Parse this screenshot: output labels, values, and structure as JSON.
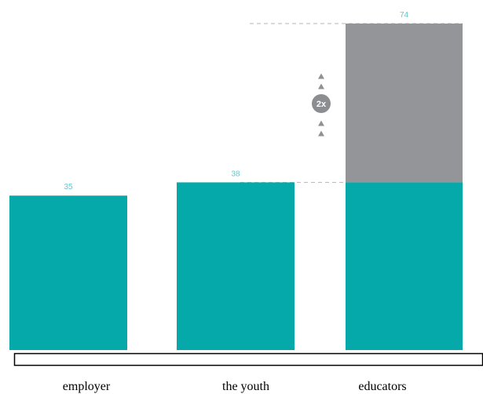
{
  "colors": {
    "bar": "#06a9a9",
    "highlight": "#939598",
    "value_label": "#5ec7d0",
    "guide_line": "#b5b5b5",
    "arrow": "#8f9193",
    "badge": "#8b8d90"
  },
  "chart_data": {
    "type": "bar",
    "categories": [
      "employer",
      "the youth",
      "educators"
    ],
    "values": [
      35,
      38,
      74
    ],
    "base_values": [
      35,
      38,
      38
    ],
    "value_labels": [
      "35",
      "38",
      "74"
    ],
    "ylim": [
      0,
      74
    ],
    "grid": false,
    "legend": "none",
    "annotation": {
      "text": "2x",
      "icon": "triangle-up-icon"
    }
  }
}
